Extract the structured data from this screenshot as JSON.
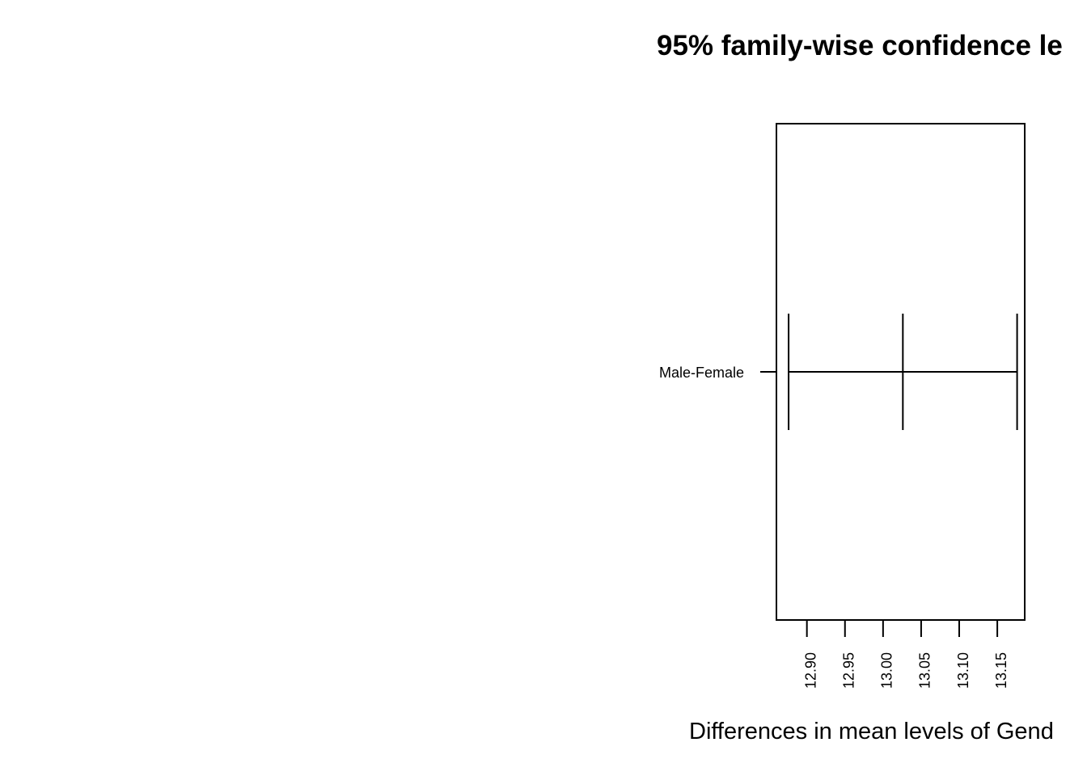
{
  "chart_data": {
    "type": "errorbar",
    "title": "95% family-wise confidence le",
    "xlabel": "Differences in mean levels of Gend",
    "categories": [
      "Male-Female"
    ],
    "intervals": [
      {
        "category": "Male-Female",
        "lwr": 12.876,
        "diff": 13.026,
        "upr": 13.176
      }
    ],
    "xlim": [
      12.86,
      13.186
    ],
    "xticks": [
      12.9,
      12.95,
      13.0,
      13.05,
      13.1,
      13.15
    ],
    "xtick_labels": [
      "12.90",
      "12.95",
      "13.00",
      "13.05",
      "13.10",
      "13.15"
    ],
    "grid": false,
    "colors": {
      "line": "#000000",
      "background": "#ffffff"
    }
  }
}
